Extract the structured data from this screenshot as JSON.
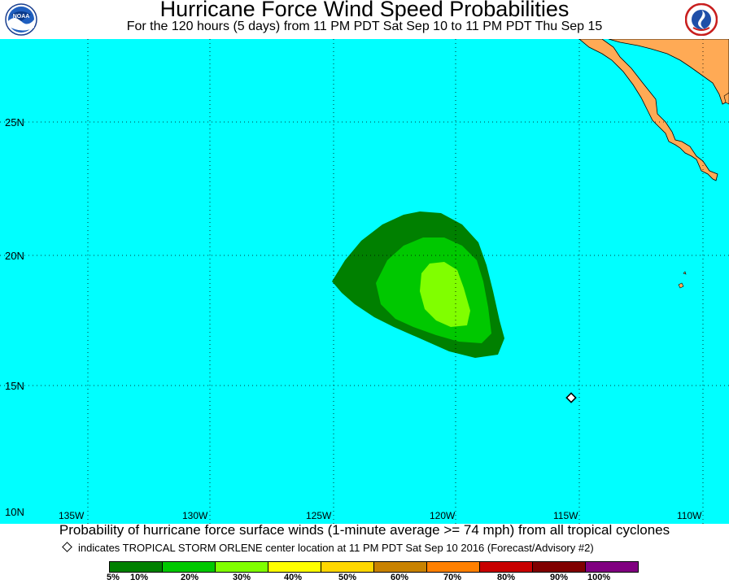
{
  "header": {
    "title": "Hurricane Force Wind Speed Probabilities",
    "subtitle": "For the 120 hours (5 days) from 11 PM PDT Sat Sep 10 to 11 PM PDT Thu Sep 15",
    "left_logo": "noaa-logo-icon",
    "left_logo_text": "NOAA",
    "right_logo": "national-weather-service-logo-icon"
  },
  "map": {
    "ocean_color": "#00ffff",
    "land_color": "#ffaa55",
    "lat_labels": [
      "25N",
      "20N",
      "15N",
      "10N"
    ],
    "lon_labels": [
      "135W",
      "130W",
      "125W",
      "120W",
      "115W",
      "110W"
    ],
    "storm_marker_icon": "storm-center-diamond-icon",
    "probability_contours": [
      {
        "level": "5%",
        "color": "#008000"
      },
      {
        "level": "10%",
        "color": "#00c800"
      },
      {
        "level": "20%",
        "color": "#80ff00"
      }
    ]
  },
  "footer": {
    "description": "Probability of hurricane force surface winds (1-minute average >= 74 mph) from all tropical cyclones",
    "storm_note": "indicates TROPICAL STORM ORLENE center location at 11 PM PDT Sat Sep 10 2016 (Forecast/Advisory #2)"
  },
  "legend": {
    "colors": [
      "#008000",
      "#00c800",
      "#80ff00",
      "#ffff00",
      "#ffd700",
      "#c88200",
      "#ff8000",
      "#c80000",
      "#800000",
      "#800080"
    ],
    "labels": [
      "5%",
      "10%",
      "20%",
      "30%",
      "40%",
      "50%",
      "60%",
      "70%",
      "80%",
      "90%",
      "100%"
    ]
  }
}
